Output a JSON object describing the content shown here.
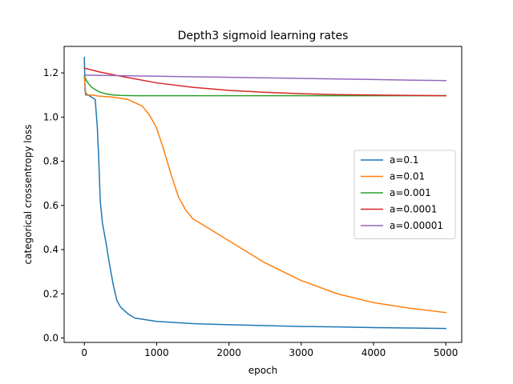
{
  "chart_data": {
    "type": "line",
    "title": "Depth3 sigmoid learning rates",
    "xlabel": "epoch",
    "ylabel": "categorical crossentropy loss",
    "xlim": [
      -280,
      5220
    ],
    "ylim": [
      -0.02,
      1.32
    ],
    "xticks": [
      0,
      1000,
      2000,
      3000,
      4000,
      5000
    ],
    "yticks": [
      0.0,
      0.2,
      0.4,
      0.6,
      0.8,
      1.0,
      1.2
    ],
    "xtick_labels": [
      "0",
      "1000",
      "2000",
      "3000",
      "4000",
      "5000"
    ],
    "ytick_labels": [
      "0.0",
      "0.2",
      "0.4",
      "0.6",
      "0.8",
      "1.0",
      "1.2"
    ],
    "grid": false,
    "legend_position": "center-right",
    "series": [
      {
        "name": "a=0.1",
        "color": "#1f77b4",
        "x": [
          0,
          10,
          20,
          50,
          100,
          150,
          180,
          200,
          220,
          250,
          300,
          350,
          400,
          450,
          500,
          600,
          700,
          800,
          1000,
          1500,
          2000,
          2500,
          3000,
          3500,
          4000,
          4500,
          5000
        ],
        "y": [
          1.27,
          1.12,
          1.1,
          1.1,
          1.09,
          1.08,
          0.95,
          0.8,
          0.62,
          0.52,
          0.43,
          0.33,
          0.24,
          0.17,
          0.14,
          0.11,
          0.09,
          0.085,
          0.075,
          0.065,
          0.06,
          0.056,
          0.052,
          0.05,
          0.047,
          0.045,
          0.043
        ]
      },
      {
        "name": "a=0.01",
        "color": "#ff7f0e",
        "x": [
          0,
          20,
          50,
          100,
          200,
          400,
          600,
          800,
          900,
          1000,
          1100,
          1200,
          1300,
          1400,
          1500,
          1600,
          1700,
          2000,
          2500,
          3000,
          3500,
          4000,
          4500,
          5000
        ],
        "y": [
          1.18,
          1.11,
          1.1,
          1.1,
          1.095,
          1.09,
          1.08,
          1.05,
          1.01,
          0.95,
          0.85,
          0.74,
          0.64,
          0.58,
          0.54,
          0.52,
          0.5,
          0.44,
          0.34,
          0.26,
          0.2,
          0.16,
          0.135,
          0.115
        ]
      },
      {
        "name": "a=0.001",
        "color": "#2ca02c",
        "x": [
          0,
          20,
          50,
          100,
          200,
          300,
          400,
          500,
          700,
          1000,
          2000,
          3000,
          4000,
          5000
        ],
        "y": [
          1.19,
          1.17,
          1.155,
          1.135,
          1.115,
          1.105,
          1.1,
          1.098,
          1.097,
          1.097,
          1.097,
          1.097,
          1.097,
          1.097
        ]
      },
      {
        "name": "a=0.0001",
        "color": "#d62728",
        "x": [
          0,
          200,
          500,
          1000,
          1500,
          2000,
          2500,
          3000,
          3500,
          4000,
          4500,
          5000
        ],
        "y": [
          1.222,
          1.205,
          1.185,
          1.155,
          1.135,
          1.121,
          1.112,
          1.106,
          1.102,
          1.1,
          1.098,
          1.097
        ]
      },
      {
        "name": "a=0.00001",
        "color": "#9467bd",
        "x": [
          0,
          1000,
          2000,
          3000,
          4000,
          5000
        ],
        "y": [
          1.19,
          1.185,
          1.18,
          1.175,
          1.17,
          1.165
        ]
      }
    ]
  }
}
